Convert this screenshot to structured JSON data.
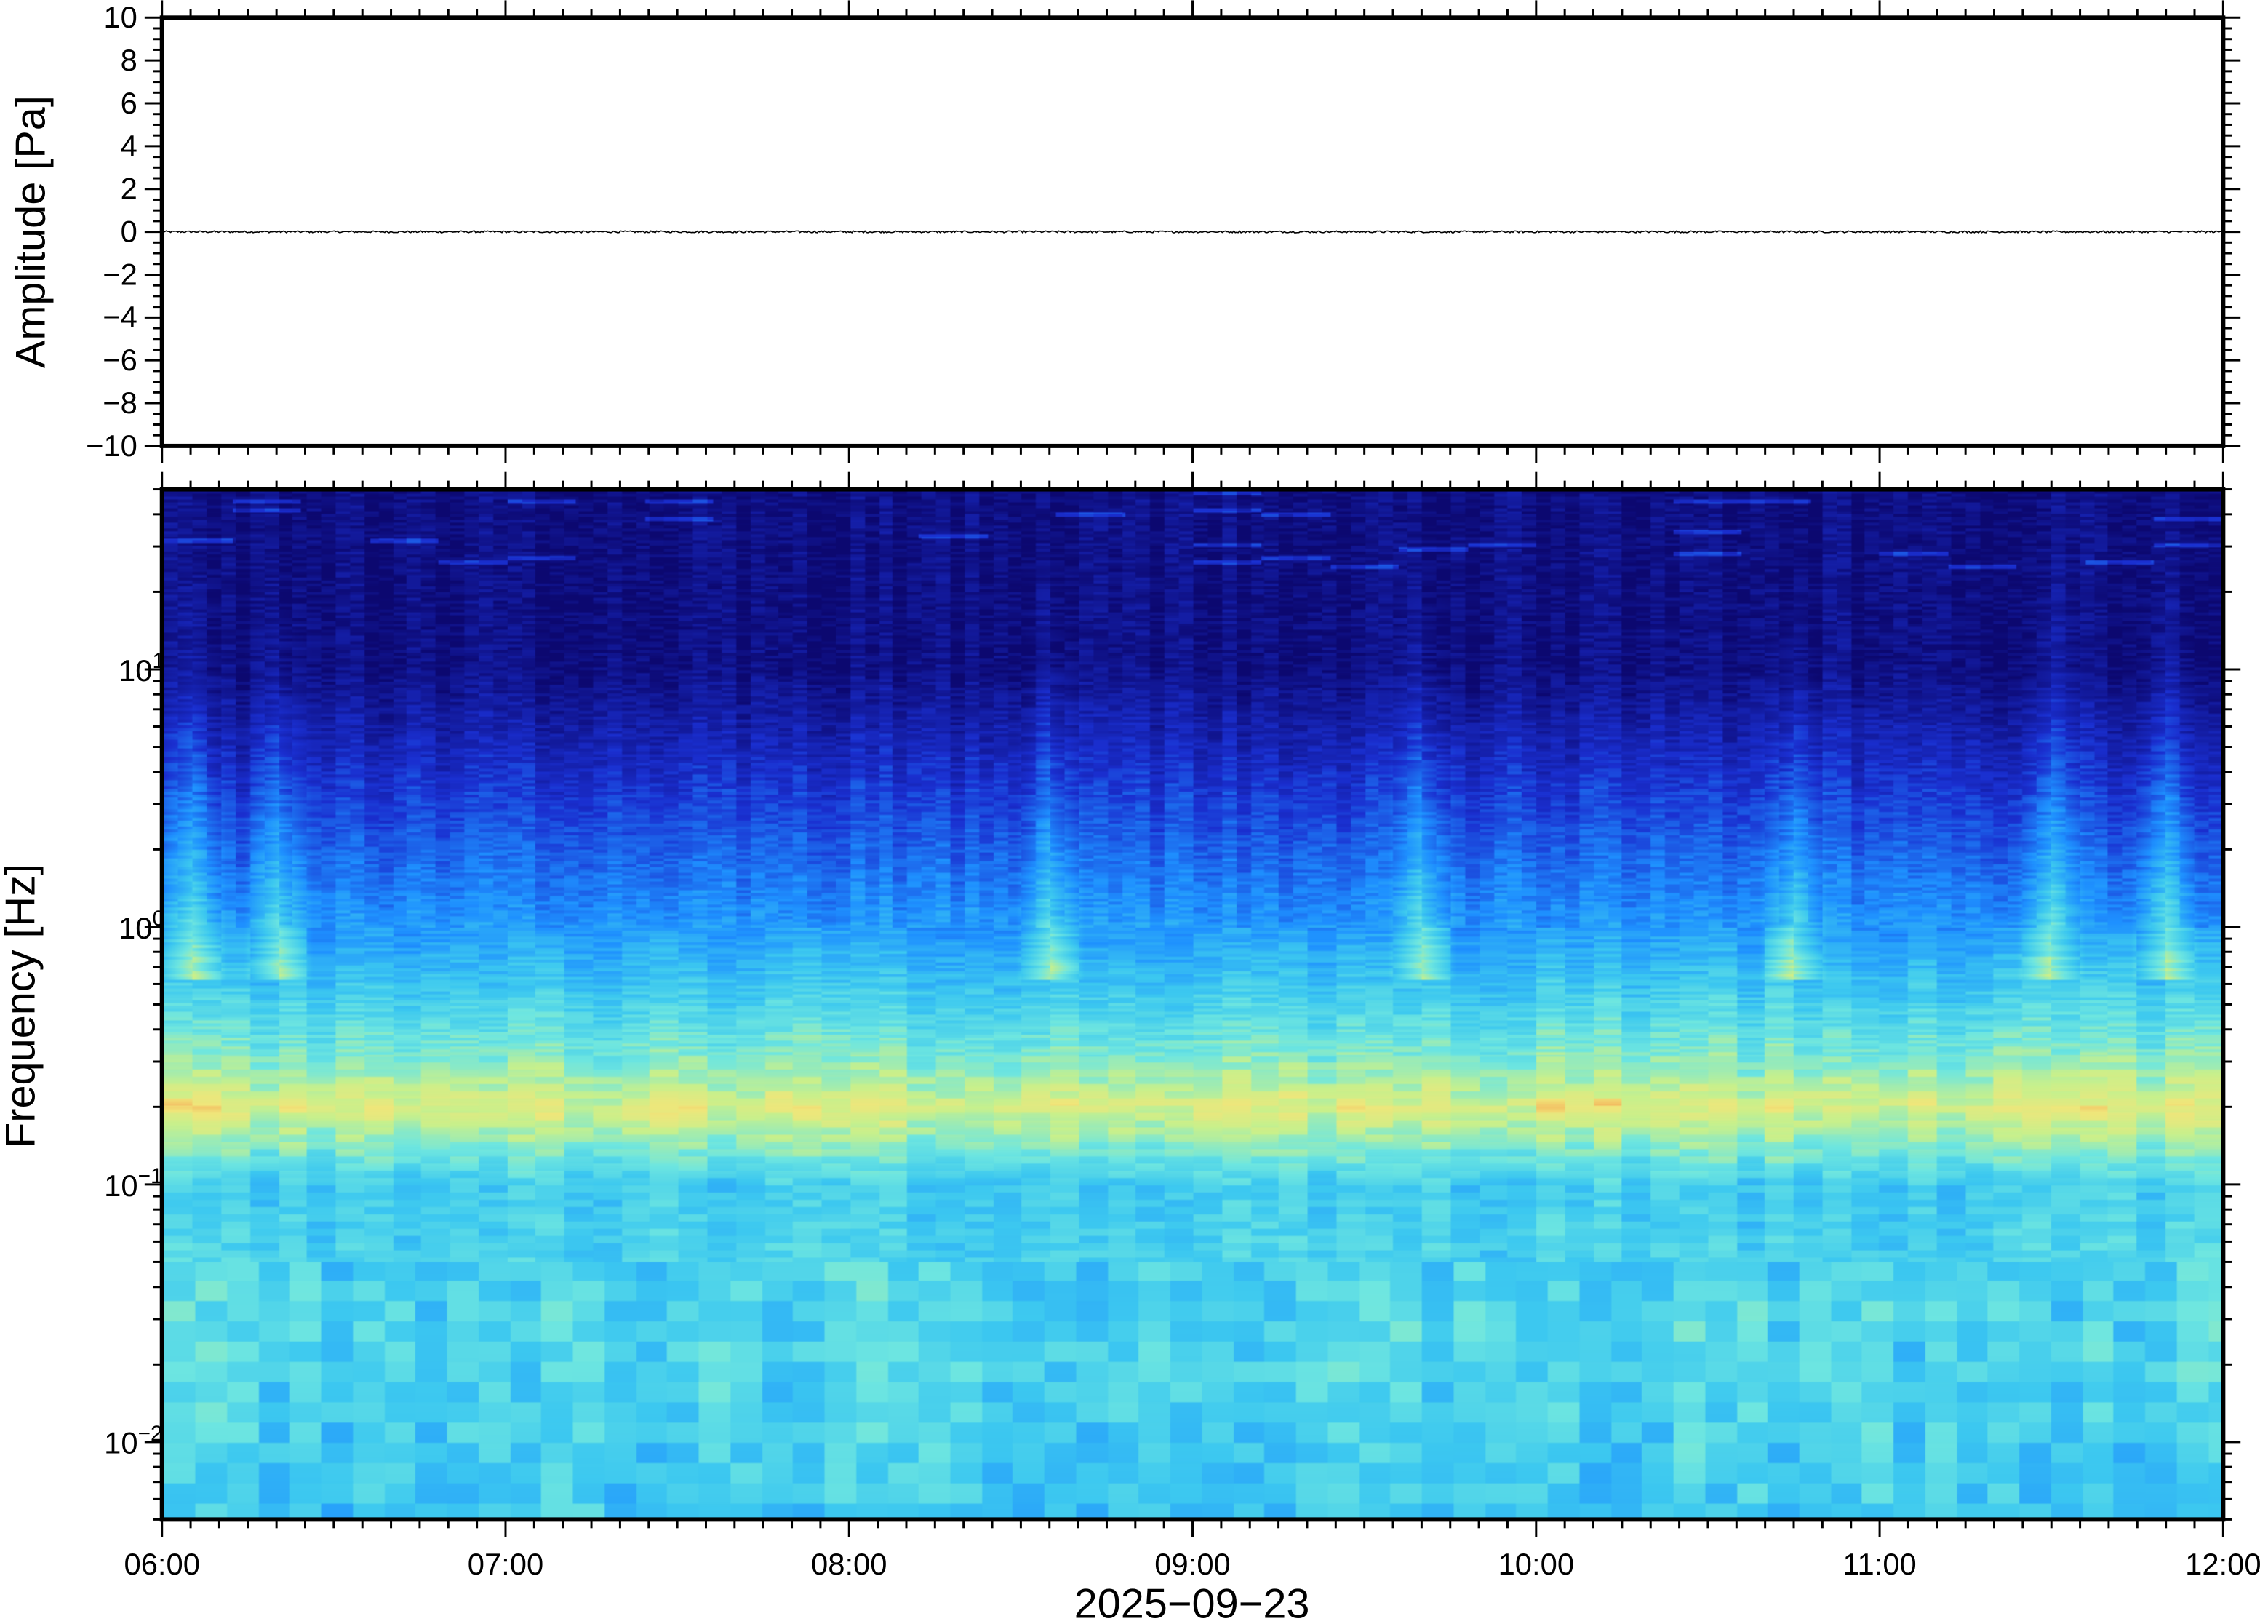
{
  "chart_data": [
    {
      "type": "line",
      "ylabel": "Amplitude [Pa]",
      "ylim": [
        -10,
        10
      ],
      "yticks": [
        "10",
        "8",
        "6",
        "4",
        "2",
        "0",
        "−2",
        "−4",
        "−6",
        "−8",
        "−10"
      ],
      "xlim": [
        "06:00",
        "12:00"
      ],
      "series": [
        {
          "values_description_level": 0,
          "approx_range_pa": [
            -0.05,
            0.05
          ]
        }
      ],
      "grid": false
    },
    {
      "type": "heatmap",
      "ylabel": "Frequency [Hz]",
      "yscale": "log",
      "ylim": [
        0.005,
        50
      ],
      "yticks": [
        {
          "base": "10",
          "exp": "1"
        },
        {
          "base": "10",
          "exp": "0"
        },
        {
          "base": "10",
          "exp": "−1"
        },
        {
          "base": "10",
          "exp": "−2"
        }
      ],
      "xlabel": "2025−09−23",
      "xlim": [
        "06:00",
        "12:00"
      ],
      "xticks": [
        "06:00",
        "07:00",
        "08:00",
        "09:00",
        "10:00",
        "11:00",
        "12:00"
      ],
      "colormap": [
        "#0c0870",
        "#1a2fd0",
        "#1e90ff",
        "#3cc8f0",
        "#6ee6e0",
        "#c8f08c",
        "#f0e67a",
        "#f5a050"
      ],
      "features": {
        "dominant_band_hz": [
          0.15,
          0.25
        ],
        "broadband_bursts_time": [
          "08:35",
          "09:40",
          "10:45"
        ]
      },
      "grid": false
    }
  ]
}
